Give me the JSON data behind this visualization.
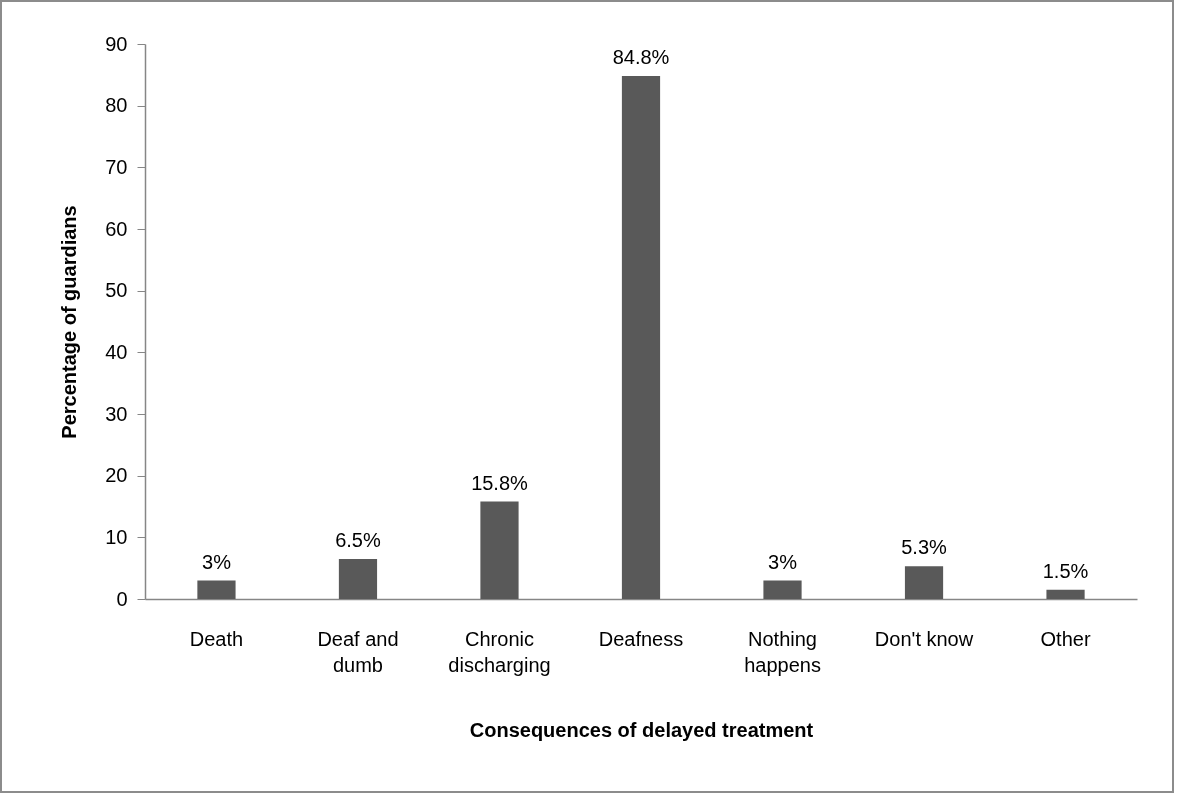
{
  "chart_data": {
    "type": "bar",
    "xlabel": "Consequences of delayed treatment",
    "ylabel": "Percentage of guardians",
    "categories": [
      "Death",
      "Deaf and dumb",
      "Chronic discharging",
      "Deafness",
      "Nothing happens",
      "Don't know",
      "Other"
    ],
    "values": [
      3,
      6.5,
      15.8,
      84.8,
      3,
      5.3,
      1.5
    ],
    "value_labels": [
      "3%",
      "6.5%",
      "15.8%",
      "84.8%",
      "3%",
      "5.3%",
      "1.5%"
    ],
    "color": "#595959",
    "ylim": [
      0,
      90
    ],
    "yticks": [
      0,
      10,
      20,
      30,
      40,
      50,
      60,
      70,
      80,
      90
    ],
    "grid": false
  }
}
